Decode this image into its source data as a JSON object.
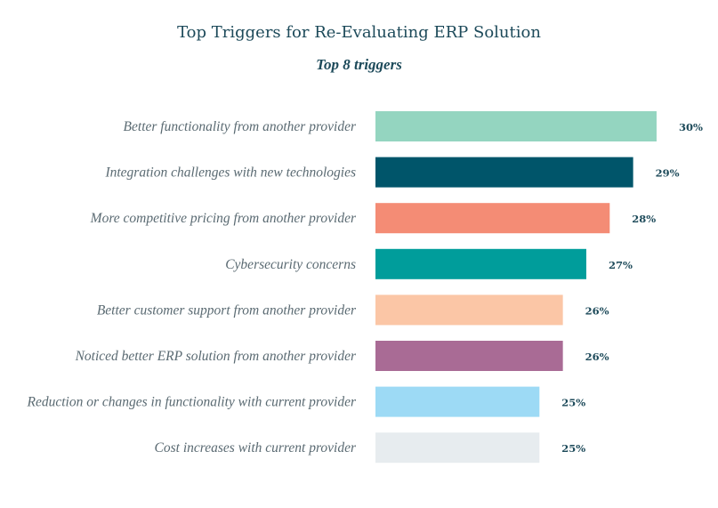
{
  "chart_data": {
    "type": "bar",
    "orientation": "horizontal",
    "title": "Top Triggers for Re-Evaluating ERP Solution",
    "subtitle": "Top 8 triggers",
    "categories": [
      "Better functionality from another provider",
      "Integration challenges with new technologies",
      "More competitive pricing from another provider",
      "Cybersecurity concerns",
      "Better customer support from another provider",
      "Noticed better ERP solution from another provider",
      "Reduction or changes in functionality with current provider",
      "Cost increases with current provider"
    ],
    "values": [
      30,
      29,
      28,
      27,
      26,
      26,
      25,
      25
    ],
    "value_labels": [
      "30%",
      "29%",
      "28%",
      "27%",
      "26%",
      "26%",
      "25%",
      "25%"
    ],
    "colors": [
      "#94d5c0",
      "#00556a",
      "#f48c75",
      "#009d9b",
      "#fbc6a6",
      "#a96b95",
      "#9ddaf5",
      "#e7ecef"
    ],
    "xlim": [
      18,
      30
    ],
    "grid": false,
    "legend": "none"
  }
}
